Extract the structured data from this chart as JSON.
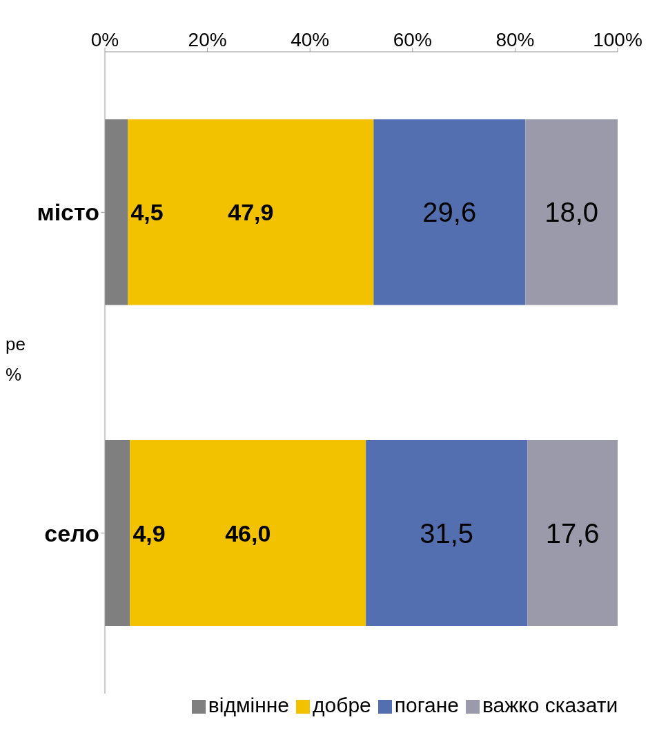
{
  "chart_data": {
    "type": "bar",
    "orientation": "horizontal",
    "stacked": true,
    "categories": [
      "місто",
      "село"
    ],
    "series": [
      {
        "name": "відмінне",
        "color": "#7f7f7f",
        "values": [
          4.5,
          4.9
        ],
        "value_labels": [
          "4,5",
          "4,9"
        ]
      },
      {
        "name": "добре",
        "color": "#f2c200",
        "values": [
          47.9,
          46.0
        ],
        "value_labels": [
          "47,9",
          "46,0"
        ]
      },
      {
        "name": "погане",
        "color": "#536fb0",
        "values": [
          29.6,
          31.5
        ],
        "value_labels": [
          "29,6",
          "31,5"
        ]
      },
      {
        "name": "важко сказати",
        "color": "#9a9aab",
        "values": [
          18.0,
          17.6
        ],
        "value_labels": [
          "18,0",
          "17,6"
        ]
      }
    ],
    "xlim": [
      0,
      100
    ],
    "xticks": [
      {
        "value": 0,
        "label": "0%"
      },
      {
        "value": 20,
        "label": "20%"
      },
      {
        "value": 40,
        "label": "40%"
      },
      {
        "value": 60,
        "label": "60%"
      },
      {
        "value": 80,
        "label": "80%"
      },
      {
        "value": 100,
        "label": "100%"
      }
    ],
    "grid": false,
    "legend": "bottom",
    "annotations": [
      "ре",
      "%"
    ]
  }
}
